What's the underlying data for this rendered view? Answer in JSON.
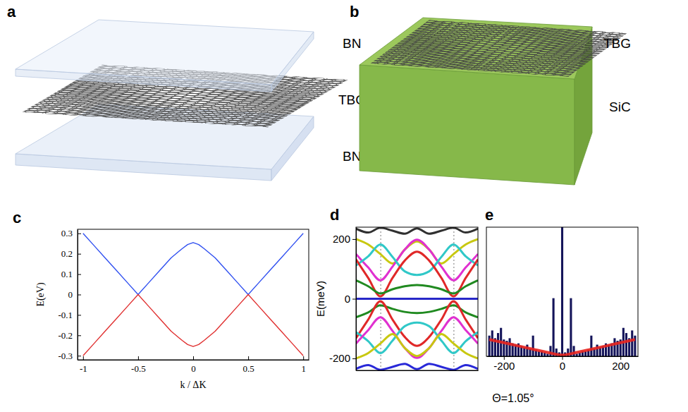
{
  "illustrations": [
    {
      "panel_label": "a",
      "labels": [
        "BN",
        "TBG",
        "BN"
      ]
    },
    {
      "panel_label": "b",
      "labels": [
        "TBG",
        "SiC"
      ]
    }
  ],
  "chart_data": [
    {
      "panel_label": "c",
      "type": "line",
      "x": [
        -1,
        -0.9,
        -0.8,
        -0.7,
        -0.6,
        -0.5,
        -0.4,
        -0.3,
        -0.2,
        -0.1,
        -0.05,
        0,
        0.05,
        0.1,
        0.2,
        0.3,
        0.4,
        0.5,
        0.6,
        0.7,
        0.8,
        0.9,
        1
      ],
      "series": [
        {
          "color": "#3050f0",
          "values": [
            0.3,
            0.24,
            0.18,
            0.12,
            0.06,
            0,
            0.06,
            0.12,
            0.18,
            0.225,
            0.245,
            0.255,
            0.245,
            0.225,
            0.18,
            0.12,
            0.06,
            0,
            0.06,
            0.12,
            0.18,
            0.24,
            0.3
          ]
        },
        {
          "color": "#e03030",
          "values": [
            -0.3,
            -0.24,
            -0.18,
            -0.12,
            -0.06,
            0,
            -0.06,
            -0.12,
            -0.18,
            -0.225,
            -0.245,
            -0.255,
            -0.245,
            -0.225,
            -0.18,
            -0.12,
            -0.06,
            0,
            -0.06,
            -0.12,
            -0.18,
            -0.24,
            -0.3
          ]
        }
      ],
      "xlabel": "k / ΔK",
      "ylabel": "E(eV)",
      "xlim": [
        -1.05,
        1.05
      ],
      "xticks": [
        -1,
        -0.5,
        0,
        0.5,
        1
      ],
      "ylim": [
        -0.32,
        0.32
      ],
      "yticks": [
        -0.3,
        -0.2,
        -0.1,
        0,
        0.1,
        0.2,
        0.3
      ]
    },
    {
      "panel_label": "d",
      "type": "line",
      "x": [
        0,
        0.1,
        0.2,
        0.3,
        0.4,
        0.5,
        0.6,
        0.7,
        0.8,
        0.9,
        1
      ],
      "series": [
        {
          "color": "#303030",
          "values": [
            235,
            222,
            238,
            228,
            218,
            236,
            218,
            228,
            238,
            222,
            235
          ]
        },
        {
          "color": "#c8c810",
          "values": [
            200,
            182,
            150,
            118,
            165,
            192,
            165,
            118,
            150,
            182,
            200
          ]
        },
        {
          "color": "#e030d0",
          "values": [
            150,
            105,
            62,
            108,
            165,
            198,
            165,
            108,
            62,
            105,
            150
          ]
        },
        {
          "color": "#30c8c8",
          "values": [
            112,
            142,
            182,
            140,
            92,
            80,
            92,
            140,
            182,
            142,
            112
          ]
        },
        {
          "color": "#e02828",
          "values": [
            132,
            70,
            8,
            70,
            128,
            158,
            128,
            70,
            8,
            70,
            132
          ]
        },
        {
          "color": "#208a20",
          "values": [
            62,
            42,
            18,
            32,
            42,
            46,
            42,
            32,
            18,
            42,
            62
          ]
        },
        {
          "color": "#2828c8",
          "values": [
            0,
            0,
            0,
            0,
            0,
            0,
            0,
            0,
            0,
            0,
            0
          ]
        },
        {
          "color": "#208a20",
          "values": [
            -62,
            -46,
            -22,
            -34,
            -44,
            -48,
            -44,
            -34,
            -22,
            -46,
            -62
          ]
        },
        {
          "color": "#e02828",
          "values": [
            -132,
            -70,
            -8,
            -70,
            -128,
            -158,
            -128,
            -70,
            -8,
            -70,
            -132
          ]
        },
        {
          "color": "#30c8c8",
          "values": [
            -112,
            -142,
            -182,
            -140,
            -92,
            -80,
            -92,
            -140,
            -182,
            -142,
            -112
          ]
        },
        {
          "color": "#e030d0",
          "values": [
            -150,
            -105,
            -62,
            -108,
            -165,
            -198,
            -165,
            -108,
            -62,
            -105,
            -150
          ]
        },
        {
          "color": "#c8c810",
          "values": [
            -200,
            -182,
            -150,
            -118,
            -165,
            -192,
            -165,
            -118,
            -150,
            -182,
            -200
          ]
        },
        {
          "color": "#2828d8",
          "values": [
            -235,
            -222,
            -238,
            -228,
            -218,
            -236,
            -218,
            -228,
            -238,
            -222,
            -235
          ]
        }
      ],
      "ylabel": "E(meV)",
      "xlim": [
        0,
        1
      ],
      "xticks": [
        0.2,
        0.8
      ],
      "ylim": [
        -240,
        240
      ],
      "yticks": [
        -200,
        0,
        200
      ],
      "tick_labels": "y"
    },
    {
      "panel_label": "e",
      "type": "bar",
      "series": [
        {
          "type": "bar",
          "color": "#14145a",
          "x": [
            -250,
            -240,
            -230,
            -220,
            -210,
            -200,
            -190,
            -180,
            -170,
            -160,
            -150,
            -140,
            -130,
            -120,
            -110,
            -100,
            -90,
            -80,
            -70,
            -60,
            -50,
            -40,
            -30,
            -20,
            -10,
            0,
            10,
            20,
            30,
            40,
            50,
            60,
            70,
            80,
            90,
            100,
            110,
            120,
            130,
            140,
            150,
            160,
            170,
            180,
            190,
            200,
            210,
            220,
            230,
            240,
            250
          ],
          "values": [
            16,
            20,
            14,
            18,
            22,
            13,
            12,
            14,
            10,
            9,
            10,
            8,
            7,
            9,
            6,
            16,
            5,
            4,
            4,
            3,
            2,
            8,
            45,
            6,
            3,
            100,
            3,
            6,
            45,
            8,
            2,
            3,
            4,
            4,
            5,
            16,
            6,
            9,
            7,
            8,
            10,
            9,
            10,
            14,
            12,
            13,
            22,
            18,
            14,
            20,
            16
          ]
        },
        {
          "type": "line",
          "color": "#e8231e",
          "x": [
            -250,
            -200,
            -150,
            -100,
            -50,
            0,
            50,
            100,
            150,
            200,
            250
          ],
          "values": [
            13,
            10.5,
            8,
            5.5,
            3,
            1,
            3,
            5.5,
            8,
            10.5,
            13
          ]
        }
      ],
      "annotations": [
        "Θ=1.05°"
      ],
      "xlim": [
        -260,
        260
      ],
      "xticks": [
        -200,
        0,
        200
      ],
      "ylim": [
        0,
        100
      ],
      "tick_labels": "x"
    }
  ]
}
